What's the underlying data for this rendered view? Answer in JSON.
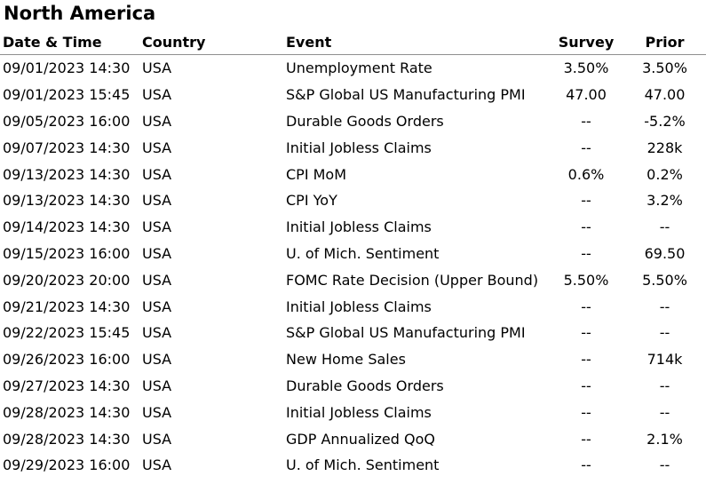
{
  "region": "North America",
  "columns": {
    "datetime": "Date & Time",
    "country": "Country",
    "event": "Event",
    "survey": "Survey",
    "prior": "Prior"
  },
  "rows": [
    {
      "datetime": "09/01/2023 14:30",
      "country": "USA",
      "event": "Unemployment Rate",
      "survey": "3.50%",
      "prior": "3.50%"
    },
    {
      "datetime": "09/01/2023 15:45",
      "country": "USA",
      "event": "S&P Global US Manufacturing PMI",
      "survey": "47.00",
      "prior": "47.00"
    },
    {
      "datetime": "09/05/2023 16:00",
      "country": "USA",
      "event": "Durable Goods Orders",
      "survey": "--",
      "prior": "-5.2%"
    },
    {
      "datetime": "09/07/2023 14:30",
      "country": "USA",
      "event": "Initial Jobless Claims",
      "survey": "--",
      "prior": "228k"
    },
    {
      "datetime": "09/13/2023 14:30",
      "country": "USA",
      "event": "CPI MoM",
      "survey": "0.6%",
      "prior": "0.2%"
    },
    {
      "datetime": "09/13/2023 14:30",
      "country": "USA",
      "event": "CPI YoY",
      "survey": "--",
      "prior": "3.2%"
    },
    {
      "datetime": "09/14/2023 14:30",
      "country": "USA",
      "event": "Initial Jobless Claims",
      "survey": "--",
      "prior": "--"
    },
    {
      "datetime": "09/15/2023 16:00",
      "country": "USA",
      "event": "U. of Mich. Sentiment",
      "survey": "--",
      "prior": "69.50"
    },
    {
      "datetime": "09/20/2023 20:00",
      "country": "USA",
      "event": "FOMC Rate Decision (Upper Bound)",
      "survey": "5.50%",
      "prior": "5.50%"
    },
    {
      "datetime": "09/21/2023 14:30",
      "country": "USA",
      "event": "Initial Jobless Claims",
      "survey": "--",
      "prior": "--"
    },
    {
      "datetime": "09/22/2023 15:45",
      "country": "USA",
      "event": "S&P Global US Manufacturing PMI",
      "survey": "--",
      "prior": "--"
    },
    {
      "datetime": "09/26/2023 16:00",
      "country": "USA",
      "event": "New Home Sales",
      "survey": "--",
      "prior": "714k"
    },
    {
      "datetime": "09/27/2023 14:30",
      "country": "USA",
      "event": "Durable Goods Orders",
      "survey": "--",
      "prior": "--"
    },
    {
      "datetime": "09/28/2023 14:30",
      "country": "USA",
      "event": "Initial Jobless Claims",
      "survey": "--",
      "prior": "--"
    },
    {
      "datetime": "09/28/2023 14:30",
      "country": "USA",
      "event": "GDP Annualized QoQ",
      "survey": "--",
      "prior": "2.1%"
    },
    {
      "datetime": "09/29/2023 16:00",
      "country": "USA",
      "event": "U. of Mich. Sentiment",
      "survey": "--",
      "prior": "--"
    }
  ]
}
